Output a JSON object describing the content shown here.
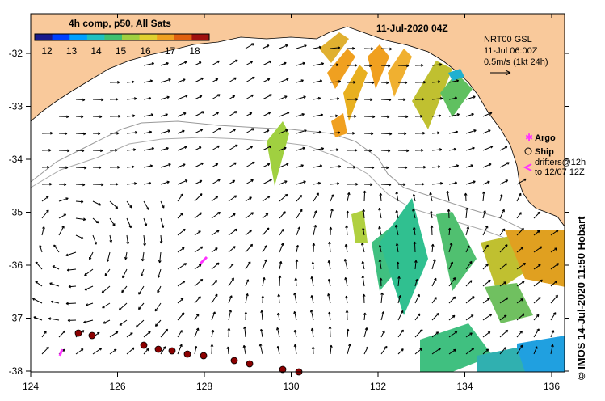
{
  "title": "11-Jul-2020 04Z",
  "colorbar": {
    "label": "4h comp, p50, All Sats",
    "ticks": [
      "12",
      "13",
      "14",
      "15",
      "16",
      "17",
      "18"
    ],
    "colors": [
      "#1a1a8c",
      "#0040ff",
      "#00a0ff",
      "#20c0c0",
      "#40c070",
      "#a0d040",
      "#e0d030",
      "#f0a020",
      "#e06010",
      "#a01010"
    ]
  },
  "current_info": {
    "line1": "NRT00 GSL",
    "line2": "11-Jul 06:00Z",
    "line3": "0.5m/s (1kt 24h)"
  },
  "legend": {
    "argo": "Argo",
    "ship": "Ship",
    "drifters_line1": "drifters@12h",
    "drifters_line2": "to 12/07 12Z"
  },
  "axes": {
    "lon_ticks": [
      "124",
      "126",
      "128",
      "130",
      "132",
      "134",
      "136"
    ],
    "lat_ticks": [
      "-32",
      "-33",
      "-34",
      "-35",
      "-36",
      "-37",
      "-38"
    ]
  },
  "credit": "© IMOS 14-Jul-2020 11:50 Hobart",
  "colors": {
    "land": "#f9c99b",
    "argo": "#ff33ff",
    "ship": "#8b0000"
  }
}
